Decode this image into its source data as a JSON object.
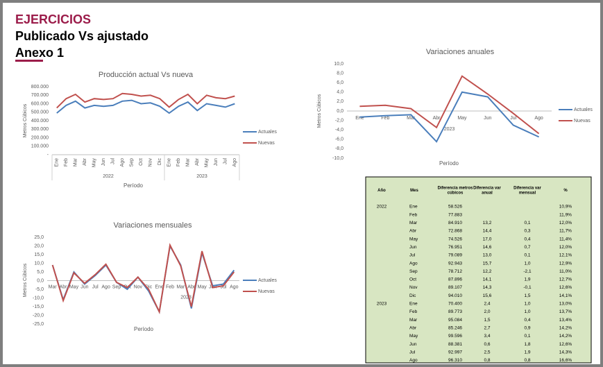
{
  "header": {
    "section": "EJERCICIOS",
    "title": "Publicado Vs ajustado",
    "subtitle": "Anexo 1"
  },
  "chart_data": [
    {
      "type": "line",
      "title": "Producción actual Vs nueva",
      "x_label": "Período",
      "y_label": "Metros Cúbicos",
      "categories": [
        "Ene",
        "Feb",
        "Mar",
        "Abr",
        "May",
        "Jun",
        "Jul",
        "Ago",
        "Sep",
        "Oct",
        "Nov",
        "Dic",
        "Ene",
        "Feb",
        "Mar",
        "Abr",
        "May",
        "Jun",
        "Jul",
        "Ago"
      ],
      "groups": [
        "2022",
        "2023"
      ],
      "series": [
        {
          "name": "Actuales",
          "color": "#4a7ebb",
          "values": [
            490000,
            580000,
            630000,
            550000,
            580000,
            570000,
            580000,
            630000,
            640000,
            600000,
            610000,
            570000,
            490000,
            570000,
            620000,
            520000,
            600000,
            580000,
            560000,
            600000
          ]
        },
        {
          "name": "Nuevas",
          "color": "#c0504d",
          "values": [
            550000,
            660000,
            710000,
            620000,
            660000,
            650000,
            660000,
            720000,
            710000,
            690000,
            700000,
            660000,
            560000,
            650000,
            710000,
            600000,
            700000,
            670000,
            660000,
            690000
          ]
        }
      ],
      "ylim": [
        0,
        800000
      ],
      "yticks": [
        {
          "value": 0,
          "label": "-"
        },
        {
          "value": 100000,
          "label": "100.000"
        },
        {
          "value": 200000,
          "label": "200.000"
        },
        {
          "value": 300000,
          "label": "300.000"
        },
        {
          "value": 400000,
          "label": "400.000"
        },
        {
          "value": 500000,
          "label": "500.000"
        },
        {
          "value": 600000,
          "label": "600.000"
        },
        {
          "value": 700000,
          "label": "700.000"
        },
        {
          "value": 800000,
          "label": "800.000"
        }
      ],
      "grid": false,
      "legend": "right"
    },
    {
      "type": "line",
      "title": "Variaciones anuales",
      "x_label": "Período",
      "y_label": "Metros Cúbicos",
      "categories": [
        "Ene",
        "Feb",
        "Mar",
        "Abr",
        "May",
        "Jun",
        "Jul",
        "Ago"
      ],
      "groups": [
        "2023"
      ],
      "series": [
        {
          "name": "Actuales",
          "color": "#4a7ebb",
          "values": [
            -1.3,
            -1.0,
            -0.8,
            -6.5,
            4.0,
            3.0,
            -3.0,
            -5.5
          ]
        },
        {
          "name": "Nuevas",
          "color": "#c0504d",
          "values": [
            1.0,
            1.2,
            0.5,
            -3.5,
            7.4,
            3.6,
            -0.5,
            -4.8
          ]
        }
      ],
      "ylim": [
        -10,
        10
      ],
      "yticks": [
        {
          "value": -10,
          "label": "-10,0"
        },
        {
          "value": -8,
          "label": "-8,0"
        },
        {
          "value": -6,
          "label": "-6,0"
        },
        {
          "value": -4,
          "label": "-4,0"
        },
        {
          "value": -2,
          "label": "-2,0"
        },
        {
          "value": 0,
          "label": "0,0"
        },
        {
          "value": 2,
          "label": "2,0"
        },
        {
          "value": 4,
          "label": "4,0"
        },
        {
          "value": 6,
          "label": "6,0"
        },
        {
          "value": 8,
          "label": "8,0"
        },
        {
          "value": 10,
          "label": "10,0"
        }
      ],
      "grid": false,
      "legend": "right"
    },
    {
      "type": "line",
      "title": "Variaciones mensuales",
      "x_label": "Período",
      "y_label": "Metros Cúbicos",
      "categories": [
        "Mar",
        "Abr",
        "May",
        "Jun",
        "Jul",
        "Ago",
        "Sep",
        "Oct",
        "Nov",
        "Dic",
        "Ene",
        "Feb",
        "Mar",
        "Abr",
        "May",
        "Jun",
        "Jul",
        "Ago"
      ],
      "groups": [
        "2023"
      ],
      "series": [
        {
          "name": "Actuales",
          "color": "#4a7ebb",
          "values": [
            9,
            -11,
            5,
            -2,
            3,
            9,
            -1,
            -5,
            2,
            -6,
            -18,
            20,
            9,
            -16,
            16,
            -3,
            -2,
            6
          ]
        },
        {
          "name": "Nuevas",
          "color": "#c0504d",
          "values": [
            9,
            -11.5,
            4.5,
            -1.5,
            3.5,
            9.5,
            -1,
            -4,
            2,
            -5,
            -18,
            20.5,
            8.5,
            -15,
            17,
            -4,
            -3,
            5
          ]
        }
      ],
      "ylim": [
        -25,
        25
      ],
      "yticks": [
        {
          "value": -25,
          "label": "-25,0"
        },
        {
          "value": -20,
          "label": "-20,0"
        },
        {
          "value": -15,
          "label": "-15,0"
        },
        {
          "value": -10,
          "label": "-10,0"
        },
        {
          "value": -5,
          "label": "-5,0"
        },
        {
          "value": 0,
          "label": "0,0"
        },
        {
          "value": 5,
          "label": "5,0"
        },
        {
          "value": 10,
          "label": "10,0"
        },
        {
          "value": 15,
          "label": "15,0"
        },
        {
          "value": 20,
          "label": "20,0"
        },
        {
          "value": 25,
          "label": "25,0"
        }
      ],
      "grid": false,
      "legend": "right"
    }
  ],
  "table": {
    "columns": [
      "Año",
      "Mes",
      "Diferencia metros cúbicos",
      "Diferencia var anual",
      "Diferencia var mensual",
      "%"
    ],
    "groups": [
      {
        "year": "2022",
        "rows": [
          [
            "Ene",
            "58.526",
            null,
            null,
            "10,9%"
          ],
          [
            "Feb",
            "77.883",
            null,
            null,
            "11,9%"
          ],
          [
            "Mar",
            "84.910",
            "13,2",
            "0,1",
            "12,0%"
          ],
          [
            "Abr",
            "72.868",
            "14,4",
            "0,3",
            "11,7%"
          ],
          [
            "May",
            "74.526",
            "17,0",
            "0,4",
            "11,4%"
          ],
          [
            "Jun",
            "76.951",
            "14,6",
            "0,7",
            "12,0%"
          ],
          [
            "Jul",
            "79.089",
            "13,0",
            "0,1",
            "12,1%"
          ],
          [
            "Ago",
            "92.943",
            "15,7",
            "1,0",
            "12,9%"
          ],
          [
            "Sep",
            "78.712",
            "12,2",
            "-2,1",
            "11,0%"
          ],
          [
            "Oct",
            "87.896",
            "14,1",
            "1,9",
            "12,7%"
          ],
          [
            "Nov",
            "89.107",
            "14,3",
            "-0,1",
            "12,6%"
          ],
          [
            "Dic",
            "94.010",
            "15,6",
            "1,5",
            "14,1%"
          ]
        ]
      },
      {
        "year": "2023",
        "rows": [
          [
            "Ene",
            "70.400",
            "2,4",
            "1,0",
            "13,0%"
          ],
          [
            "Feb",
            "89.773",
            "2,0",
            "1,0",
            "13,7%"
          ],
          [
            "Mar",
            "95.084",
            "1,5",
            "0,4",
            "13,4%"
          ],
          [
            "Abr",
            "85.246",
            "2,7",
            "0,9",
            "14,2%"
          ],
          [
            "May",
            "99.596",
            "3,4",
            "0,1",
            "14,2%"
          ],
          [
            "Jun",
            "88.381",
            "0,6",
            "1,8",
            "12,6%"
          ],
          [
            "Jul",
            "92.997",
            "2,5",
            "1,9",
            "14,3%"
          ],
          [
            "Ago",
            "96.310",
            "0,8",
            "0,8",
            "16,6%"
          ]
        ]
      }
    ]
  }
}
